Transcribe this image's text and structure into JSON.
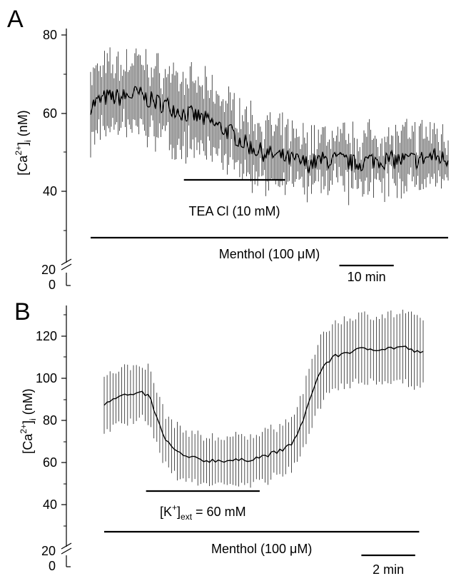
{
  "chart_data": [
    {
      "panel": "A",
      "type": "line",
      "ylabel": {
        "main": "[Ca",
        "sup": "2+",
        "close": "]",
        "sub": "i",
        "unit": " (nM)"
      },
      "yticks": [
        "80",
        "60",
        "40",
        "20",
        "0"
      ],
      "ylim": [
        35,
        80
      ],
      "axis_break": true,
      "x_units": "min",
      "xlim": [
        0,
        46
      ],
      "series": [
        {
          "error_bars": true,
          "x": [
            0,
            2,
            4,
            6,
            8,
            10,
            12,
            14,
            16,
            18,
            20,
            22,
            24,
            26,
            28,
            30,
            32,
            34,
            36,
            38,
            40,
            42,
            44,
            46
          ],
          "y": [
            62,
            64,
            64,
            65,
            63,
            62,
            60,
            59,
            57,
            55,
            52,
            50,
            49,
            48,
            47,
            48,
            48,
            47,
            48,
            48,
            48,
            48,
            49,
            48
          ],
          "err": [
            8,
            8,
            8,
            9,
            8,
            8,
            8,
            8,
            8,
            7,
            7,
            7,
            6,
            6,
            6,
            6,
            6,
            6,
            6,
            6,
            6,
            6,
            6,
            6
          ]
        }
      ],
      "annotations": [
        {
          "id": "tea",
          "label": "TEA Cl (10 mM)",
          "x_start": 12,
          "x_end": 25
        },
        {
          "id": "menthol",
          "label": "Menthol  (100 μM)",
          "x_start": 0,
          "x_end": 46
        },
        {
          "id": "scale",
          "label": "10 min",
          "x_start": 32,
          "x_end": 39
        }
      ]
    },
    {
      "panel": "B",
      "type": "line",
      "ylabel": {
        "main": "[Ca",
        "sup": "2+",
        "close": "]",
        "sub": "i",
        "unit": " (nM)"
      },
      "yticks": [
        "120",
        "100",
        "80",
        "60",
        "40",
        "20",
        "0"
      ],
      "ylim": [
        33,
        133
      ],
      "axis_break": true,
      "x_units": "min",
      "xlim": [
        0,
        16
      ],
      "series": [
        {
          "error_bars": true,
          "x": [
            0,
            0.5,
            1,
            1.5,
            2,
            2.3,
            2.6,
            3,
            3.5,
            4,
            5,
            6,
            7,
            8,
            9,
            9.5,
            10,
            10.5,
            11,
            11.5,
            12,
            13,
            14,
            15,
            15.8
          ],
          "y": [
            88,
            91,
            92,
            92,
            93,
            91,
            82,
            72,
            66,
            63,
            61,
            61,
            61,
            63,
            66,
            70,
            80,
            96,
            106,
            110,
            112,
            114,
            114,
            115,
            112
          ],
          "err": [
            13,
            13,
            13,
            13,
            13,
            13,
            13,
            12,
            12,
            12,
            11,
            11,
            11,
            12,
            12,
            13,
            14,
            15,
            16,
            16,
            16,
            16,
            16,
            16,
            16
          ]
        }
      ],
      "annotations": [
        {
          "id": "k",
          "label_main": "[K",
          "label_sup": "+",
          "label_close": "]",
          "label_sub": "ext",
          "label_rest": " = 60 mM",
          "x_start": 2.1,
          "x_end": 7.8
        },
        {
          "id": "menthol",
          "label": "Menthol (100 μM)",
          "x_start": 0,
          "x_end": 15.8
        },
        {
          "id": "scale",
          "label": "2 min",
          "x_start": 12.9,
          "x_end": 15.6
        }
      ]
    }
  ]
}
